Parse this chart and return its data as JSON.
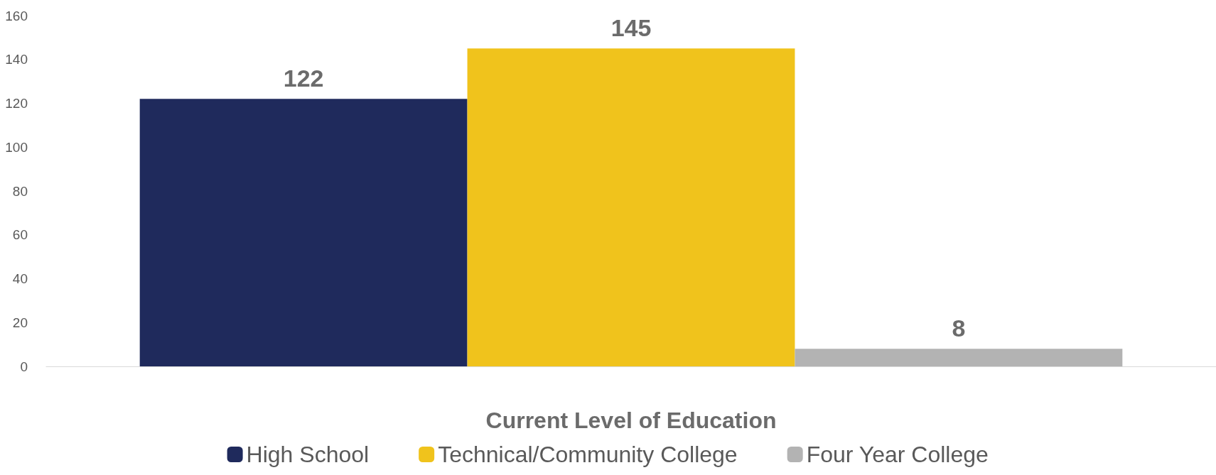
{
  "chart_data": {
    "type": "bar",
    "xlabel": "Current Level of Education",
    "categories": [
      null
    ],
    "series": [
      {
        "name": "High School",
        "color": "#1f2a5c",
        "values": [
          122
        ]
      },
      {
        "name": "Technical/Community College",
        "color": "#f0c31c",
        "values": [
          145
        ]
      },
      {
        "name": "Four Year College",
        "color": "#b3b3b3",
        "values": [
          8
        ]
      }
    ],
    "ylim": [
      0,
      160
    ],
    "yticks": [
      0,
      20,
      40,
      60,
      80,
      100,
      120,
      140,
      160
    ],
    "grid": false,
    "legend": "bottom",
    "data_labels": true
  }
}
